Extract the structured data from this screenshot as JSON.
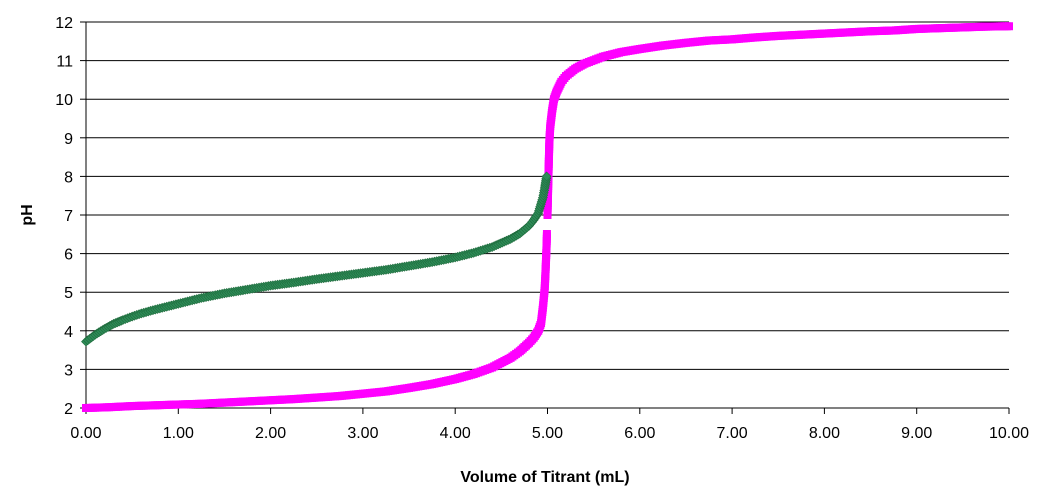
{
  "chart_data": {
    "type": "scatter",
    "title": "",
    "xlabel": "Volume of Titrant (mL)",
    "ylabel": "pH",
    "xlim": [
      0,
      10
    ],
    "ylim": [
      2,
      12
    ],
    "x_ticks": [
      "0.00",
      "1.00",
      "2.00",
      "3.00",
      "4.00",
      "5.00",
      "6.00",
      "7.00",
      "8.00",
      "9.00",
      "10.00"
    ],
    "y_ticks": [
      "2",
      "3",
      "4",
      "5",
      "6",
      "7",
      "8",
      "9",
      "10",
      "11",
      "12"
    ],
    "grid": "horizontal",
    "legend": "none",
    "series": [
      {
        "color": "#ff00ff",
        "marker": "square",
        "points": [
          [
            0.0,
            2.0
          ],
          [
            0.25,
            2.02
          ],
          [
            0.5,
            2.05
          ],
          [
            0.75,
            2.07
          ],
          [
            1.0,
            2.09
          ],
          [
            1.25,
            2.11
          ],
          [
            1.5,
            2.14
          ],
          [
            1.75,
            2.17
          ],
          [
            2.0,
            2.2
          ],
          [
            2.25,
            2.23
          ],
          [
            2.5,
            2.27
          ],
          [
            2.75,
            2.31
          ],
          [
            3.0,
            2.37
          ],
          [
            3.25,
            2.43
          ],
          [
            3.5,
            2.52
          ],
          [
            3.75,
            2.62
          ],
          [
            4.0,
            2.75
          ],
          [
            4.2,
            2.88
          ],
          [
            4.4,
            3.05
          ],
          [
            4.6,
            3.3
          ],
          [
            4.7,
            3.47
          ],
          [
            4.8,
            3.69
          ],
          [
            4.85,
            3.82
          ],
          [
            4.9,
            4.0
          ],
          [
            4.93,
            4.2
          ],
          [
            4.95,
            4.6
          ],
          [
            4.97,
            5.1
          ],
          [
            4.98,
            5.6
          ],
          [
            4.99,
            6.2
          ],
          [
            5.0,
            7.0
          ],
          [
            5.01,
            8.0
          ],
          [
            5.02,
            8.9
          ],
          [
            5.03,
            9.3
          ],
          [
            5.05,
            9.7
          ],
          [
            5.07,
            10.0
          ],
          [
            5.1,
            10.2
          ],
          [
            5.15,
            10.45
          ],
          [
            5.2,
            10.6
          ],
          [
            5.3,
            10.79
          ],
          [
            5.4,
            10.92
          ],
          [
            5.6,
            11.1
          ],
          [
            5.8,
            11.22
          ],
          [
            6.0,
            11.3
          ],
          [
            6.25,
            11.39
          ],
          [
            6.5,
            11.46
          ],
          [
            6.75,
            11.52
          ],
          [
            7.0,
            11.55
          ],
          [
            7.25,
            11.6
          ],
          [
            7.5,
            11.64
          ],
          [
            7.75,
            11.67
          ],
          [
            8.0,
            11.7
          ],
          [
            8.25,
            11.73
          ],
          [
            8.5,
            11.76
          ],
          [
            8.75,
            11.78
          ],
          [
            9.0,
            11.82
          ],
          [
            9.25,
            11.84
          ],
          [
            9.5,
            11.86
          ],
          [
            9.75,
            11.88
          ],
          [
            10.0,
            11.89
          ]
        ]
      },
      {
        "color": "#2e8b57",
        "marker": "diamond",
        "points": [
          [
            0.0,
            3.72
          ],
          [
            0.1,
            3.9
          ],
          [
            0.2,
            4.05
          ],
          [
            0.3,
            4.18
          ],
          [
            0.4,
            4.28
          ],
          [
            0.5,
            4.37
          ],
          [
            0.6,
            4.45
          ],
          [
            0.75,
            4.55
          ],
          [
            1.0,
            4.7
          ],
          [
            1.25,
            4.85
          ],
          [
            1.5,
            4.97
          ],
          [
            1.75,
            5.07
          ],
          [
            2.0,
            5.17
          ],
          [
            2.25,
            5.25
          ],
          [
            2.5,
            5.34
          ],
          [
            2.75,
            5.42
          ],
          [
            3.0,
            5.5
          ],
          [
            3.25,
            5.58
          ],
          [
            3.5,
            5.68
          ],
          [
            3.75,
            5.78
          ],
          [
            4.0,
            5.9
          ],
          [
            4.2,
            6.02
          ],
          [
            4.4,
            6.17
          ],
          [
            4.6,
            6.38
          ],
          [
            4.7,
            6.52
          ],
          [
            4.8,
            6.72
          ],
          [
            4.85,
            6.87
          ],
          [
            4.9,
            7.05
          ],
          [
            4.95,
            7.45
          ],
          [
            4.97,
            7.7
          ],
          [
            4.98,
            7.85
          ],
          [
            4.99,
            8.0
          ]
        ]
      }
    ]
  }
}
